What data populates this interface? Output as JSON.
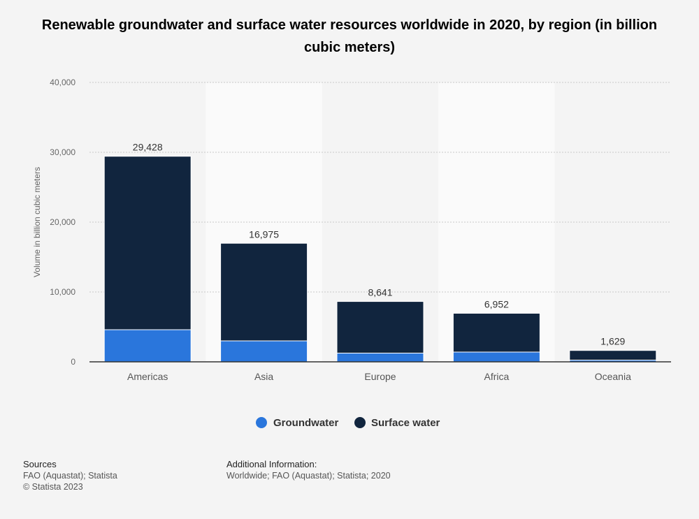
{
  "chart_data": {
    "type": "bar",
    "stacked": true,
    "title": "Renewable groundwater and surface water resources worldwide in 2020, by region (in billion cubic meters)",
    "ylabel": "Volume in billion cubic meters",
    "xlabel": "",
    "ylim": [
      0,
      40000
    ],
    "yticks": [
      0,
      10000,
      20000,
      30000,
      40000
    ],
    "ytick_labels": [
      "0",
      "10,000",
      "20,000",
      "30,000",
      "40,000"
    ],
    "categories": [
      "Americas",
      "Asia",
      "Europe",
      "Africa",
      "Oceania"
    ],
    "series": [
      {
        "name": "Groundwater",
        "color": "#2a76dc",
        "values": [
          4600,
          3000,
          1250,
          1400,
          250
        ]
      },
      {
        "name": "Surface water",
        "color": "#11253e",
        "values": [
          24828,
          13975,
          7391,
          5552,
          1379
        ]
      }
    ],
    "totals": [
      29428,
      16975,
      8641,
      6952,
      1629
    ],
    "total_labels": [
      "29,428",
      "16,975",
      "8,641",
      "6,952",
      "1,629"
    ],
    "grid": true,
    "legend_position": "bottom-center"
  },
  "footer": {
    "sources_title": "Sources",
    "sources_text": "FAO (Aquastat); Statista",
    "copyright": "© Statista 2023",
    "additional_title": "Additional Information:",
    "additional_text": "Worldwide; FAO (Aquastat); Statista; 2020"
  }
}
